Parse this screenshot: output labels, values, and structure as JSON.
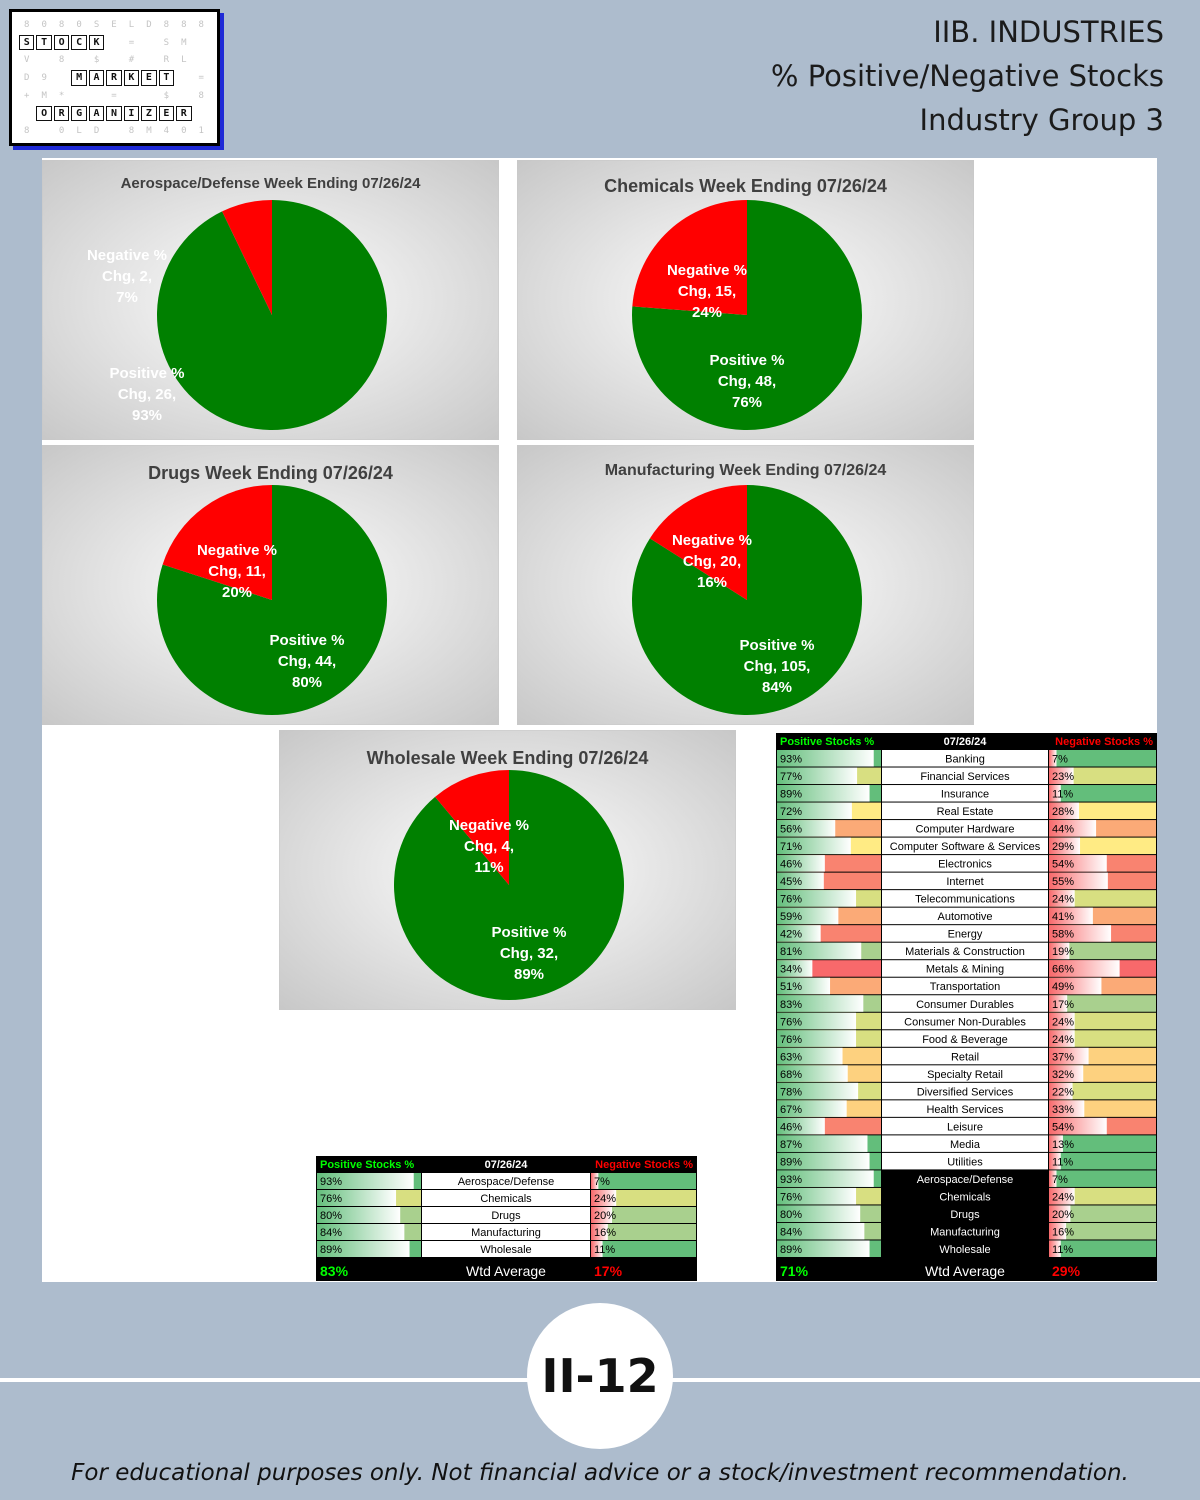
{
  "header": {
    "line1": "IIB. INDUSTRIES",
    "line2": "% Positive/Negative Stocks",
    "line3": "Industry Group 3"
  },
  "logo": {
    "rows": [
      [
        "8",
        "0",
        "8",
        "0",
        "S",
        "E",
        "L",
        "D",
        "8",
        "8",
        "8"
      ],
      [
        "S",
        "T",
        "O",
        "C",
        "K",
        "",
        "=",
        "",
        "S",
        "M",
        ""
      ],
      [
        "V",
        "",
        "8",
        "",
        "$",
        "",
        "#",
        "",
        "R",
        "L",
        ""
      ],
      [
        "D",
        "9",
        "",
        "M",
        "A",
        "R",
        "K",
        "E",
        "T",
        "",
        "="
      ],
      [
        "+",
        "M",
        "*",
        "",
        "",
        "=",
        "",
        "",
        "$",
        "",
        "8"
      ],
      [
        "",
        "O",
        "R",
        "G",
        "A",
        "N",
        "I",
        "Z",
        "E",
        "R",
        ""
      ],
      [
        "8",
        "",
        "0",
        "L",
        "D",
        "",
        "8",
        "M",
        "4",
        "0",
        "1"
      ]
    ],
    "highlight": {
      "1": [
        0,
        1,
        2,
        3,
        4
      ],
      "3": [
        3,
        4,
        5,
        6,
        7,
        8
      ],
      "5": [
        1,
        2,
        3,
        4,
        5,
        6,
        7,
        8,
        9
      ]
    },
    "row_offsets": {
      "1": 0,
      "3": 0,
      "5": 0
    }
  },
  "colors": {
    "positive": "#008000",
    "negative": "#ff0000",
    "chart_bg_light": "#ffffff",
    "chart_bg_dark": "#c8c8c8",
    "table_pos_header": "#00ff00",
    "table_neg_header": "#ff0000"
  },
  "chart_data": [
    {
      "type": "pie",
      "title": "Aerospace/Defense Week Ending 07/26/24",
      "slices": [
        {
          "name": "Negative % Chg",
          "count": 2,
          "percent": 7
        },
        {
          "name": "Positive % Chg",
          "count": 26,
          "percent": 93
        }
      ]
    },
    {
      "type": "pie",
      "title": "Chemicals Week Ending 07/26/24",
      "slices": [
        {
          "name": "Negative % Chg",
          "count": 15,
          "percent": 24
        },
        {
          "name": "Positive % Chg",
          "count": 48,
          "percent": 76
        }
      ]
    },
    {
      "type": "pie",
      "title": "Drugs Week Ending 07/26/24",
      "slices": [
        {
          "name": "Negative % Chg",
          "count": 11,
          "percent": 20
        },
        {
          "name": "Positive % Chg",
          "count": 44,
          "percent": 80
        }
      ]
    },
    {
      "type": "pie",
      "title": "Manufacturing  Week Ending  07/26/24",
      "slices": [
        {
          "name": "Negative % Chg",
          "count": 20,
          "percent": 16
        },
        {
          "name": "Positive % Chg",
          "count": 105,
          "percent": 84
        }
      ]
    },
    {
      "type": "pie",
      "title": "Wholesale Week Ending 07/26/24",
      "slices": [
        {
          "name": "Negative % Chg",
          "count": 4,
          "percent": 11
        },
        {
          "name": "Positive % Chg",
          "count": 32,
          "percent": 89
        }
      ]
    },
    {
      "type": "table",
      "headers": {
        "left": "Positive Stocks %",
        "center": "07/26/24",
        "right": "Negative Stocks %"
      },
      "rows": [
        {
          "label": "Aerospace/Defense",
          "pos": 93,
          "neg": 7
        },
        {
          "label": "Chemicals",
          "pos": 76,
          "neg": 24
        },
        {
          "label": "Drugs",
          "pos": 80,
          "neg": 20
        },
        {
          "label": "Manufacturing",
          "pos": 84,
          "neg": 16
        },
        {
          "label": "Wholesale",
          "pos": 89,
          "neg": 11
        }
      ],
      "footer": {
        "pos": "83%",
        "label": "Wtd Average",
        "neg": "17%"
      }
    },
    {
      "type": "table",
      "headers": {
        "left": "Positive Stocks %",
        "center": "07/26/24",
        "right": "Negative Stocks %"
      },
      "rows": [
        {
          "label": "Banking",
          "pos": 93,
          "neg": 7
        },
        {
          "label": "Financial Services",
          "pos": 77,
          "neg": 23
        },
        {
          "label": "Insurance",
          "pos": 89,
          "neg": 11
        },
        {
          "label": "Real Estate",
          "pos": 72,
          "neg": 28
        },
        {
          "label": "Computer Hardware",
          "pos": 56,
          "neg": 44
        },
        {
          "label": "Computer Software & Services",
          "pos": 71,
          "neg": 29
        },
        {
          "label": "Electronics",
          "pos": 46,
          "neg": 54
        },
        {
          "label": "Internet",
          "pos": 45,
          "neg": 55
        },
        {
          "label": "Telecommunications",
          "pos": 76,
          "neg": 24
        },
        {
          "label": "Automotive",
          "pos": 59,
          "neg": 41
        },
        {
          "label": "Energy",
          "pos": 42,
          "neg": 58
        },
        {
          "label": "Materials & Construction",
          "pos": 81,
          "neg": 19
        },
        {
          "label": "Metals & Mining",
          "pos": 34,
          "neg": 66
        },
        {
          "label": "Transportation",
          "pos": 51,
          "neg": 49
        },
        {
          "label": "Consumer Durables",
          "pos": 83,
          "neg": 17
        },
        {
          "label": "Consumer Non-Durables",
          "pos": 76,
          "neg": 24
        },
        {
          "label": "Food & Beverage",
          "pos": 76,
          "neg": 24
        },
        {
          "label": "Retail",
          "pos": 63,
          "neg": 37
        },
        {
          "label": "Specialty Retail",
          "pos": 68,
          "neg": 32
        },
        {
          "label": "Diversified Services",
          "pos": 78,
          "neg": 22
        },
        {
          "label": "Health Services",
          "pos": 67,
          "neg": 33
        },
        {
          "label": "Leisure",
          "pos": 46,
          "neg": 54
        },
        {
          "label": "Media",
          "pos": 87,
          "neg": 13
        },
        {
          "label": "Utilities",
          "pos": 89,
          "neg": 11
        },
        {
          "label": "Aerospace/Defense",
          "pos": 93,
          "neg": 7,
          "dark": true
        },
        {
          "label": "Chemicals",
          "pos": 76,
          "neg": 24,
          "dark": true
        },
        {
          "label": "Drugs",
          "pos": 80,
          "neg": 20,
          "dark": true
        },
        {
          "label": "Manufacturing",
          "pos": 84,
          "neg": 16,
          "dark": true
        },
        {
          "label": "Wholesale",
          "pos": 89,
          "neg": 11,
          "dark": true
        }
      ],
      "footer": {
        "pos": "71%",
        "label": "Wtd Average",
        "neg": "29%"
      }
    }
  ],
  "badge": "II-12",
  "disclaimer": "For educational purposes only. Not financial advice or a stock/investment recommendation."
}
